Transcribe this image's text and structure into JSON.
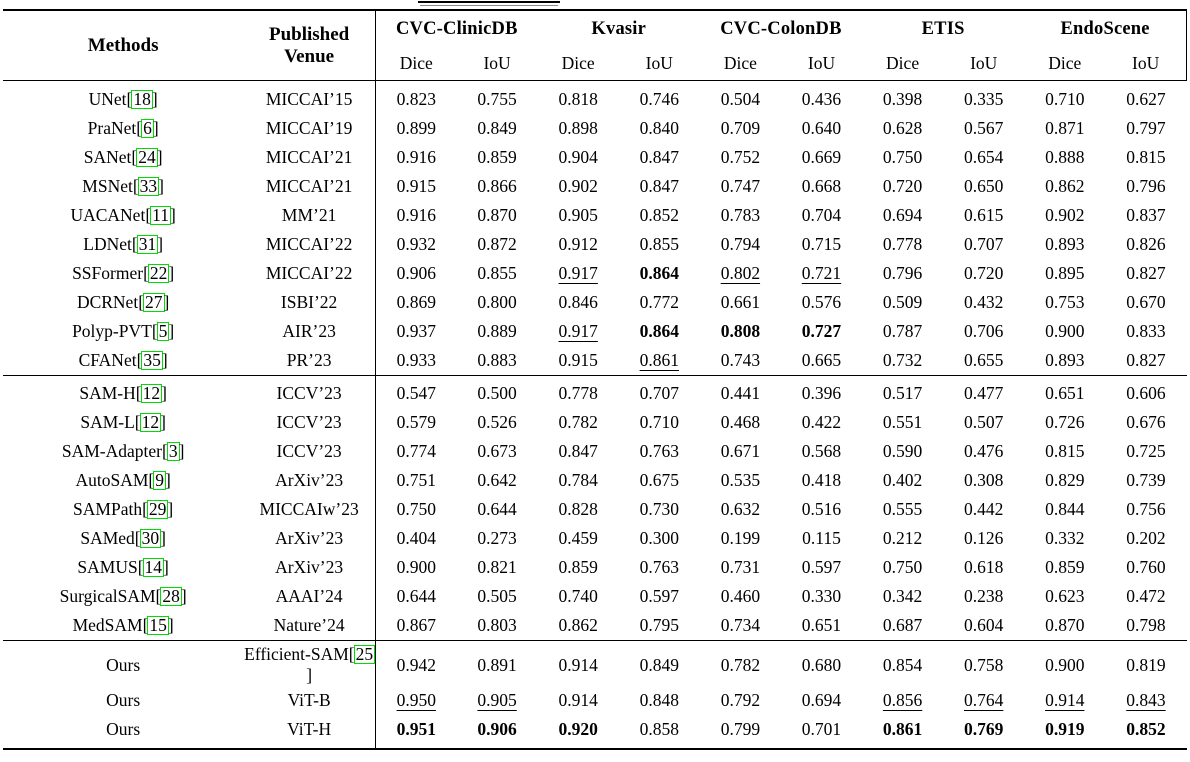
{
  "colors": {
    "citation_green": "#00dc00",
    "text": "#000000",
    "background": "#ffffff"
  },
  "table": {
    "header": {
      "methods": "Methods",
      "venue_line1": "Published",
      "venue_line2": "Venue",
      "datasets": [
        "CVC-ClinicDB",
        "Kvasir",
        "CVC-ColonDB",
        "ETIS",
        "EndoScene"
      ],
      "metrics": [
        "Dice",
        "IoU"
      ]
    },
    "groups": [
      {
        "rows": [
          {
            "method": "UNet",
            "method_cite": "18",
            "venue": "MICCAI’15",
            "venue_cite": null,
            "values": [
              {
                "v": "0.823"
              },
              {
                "v": "0.755"
              },
              {
                "v": "0.818"
              },
              {
                "v": "0.746"
              },
              {
                "v": "0.504"
              },
              {
                "v": "0.436"
              },
              {
                "v": "0.398"
              },
              {
                "v": "0.335"
              },
              {
                "v": "0.710"
              },
              {
                "v": "0.627"
              }
            ]
          },
          {
            "method": "PraNet",
            "method_cite": "6",
            "venue": "MICCAI’19",
            "venue_cite": null,
            "values": [
              {
                "v": "0.899"
              },
              {
                "v": "0.849"
              },
              {
                "v": "0.898"
              },
              {
                "v": "0.840"
              },
              {
                "v": "0.709"
              },
              {
                "v": "0.640"
              },
              {
                "v": "0.628"
              },
              {
                "v": "0.567"
              },
              {
                "v": "0.871"
              },
              {
                "v": "0.797"
              }
            ]
          },
          {
            "method": "SANet",
            "method_cite": "24",
            "venue": "MICCAI’21",
            "venue_cite": null,
            "values": [
              {
                "v": "0.916"
              },
              {
                "v": "0.859"
              },
              {
                "v": "0.904"
              },
              {
                "v": "0.847"
              },
              {
                "v": "0.752"
              },
              {
                "v": "0.669"
              },
              {
                "v": "0.750"
              },
              {
                "v": "0.654"
              },
              {
                "v": "0.888"
              },
              {
                "v": "0.815"
              }
            ]
          },
          {
            "method": "MSNet",
            "method_cite": "33",
            "venue": "MICCAI’21",
            "venue_cite": null,
            "values": [
              {
                "v": "0.915"
              },
              {
                "v": "0.866"
              },
              {
                "v": "0.902"
              },
              {
                "v": "0.847"
              },
              {
                "v": "0.747"
              },
              {
                "v": "0.668"
              },
              {
                "v": "0.720"
              },
              {
                "v": "0.650"
              },
              {
                "v": "0.862"
              },
              {
                "v": "0.796"
              }
            ]
          },
          {
            "method": "UACANet",
            "method_cite": "11",
            "venue": "MM’21",
            "venue_cite": null,
            "values": [
              {
                "v": "0.916"
              },
              {
                "v": "0.870"
              },
              {
                "v": "0.905"
              },
              {
                "v": "0.852"
              },
              {
                "v": "0.783"
              },
              {
                "v": "0.704"
              },
              {
                "v": "0.694"
              },
              {
                "v": "0.615"
              },
              {
                "v": "0.902"
              },
              {
                "v": "0.837"
              }
            ]
          },
          {
            "method": "LDNet",
            "method_cite": "31",
            "venue": "MICCAI’22",
            "venue_cite": null,
            "values": [
              {
                "v": "0.932"
              },
              {
                "v": "0.872"
              },
              {
                "v": "0.912"
              },
              {
                "v": "0.855"
              },
              {
                "v": "0.794"
              },
              {
                "v": "0.715"
              },
              {
                "v": "0.778"
              },
              {
                "v": "0.707"
              },
              {
                "v": "0.893"
              },
              {
                "v": "0.826"
              }
            ]
          },
          {
            "method": "SSFormer",
            "method_cite": "22",
            "venue": "MICCAI’22",
            "venue_cite": null,
            "values": [
              {
                "v": "0.906"
              },
              {
                "v": "0.855"
              },
              {
                "v": "0.917",
                "s": "u"
              },
              {
                "v": "0.864",
                "s": "b"
              },
              {
                "v": "0.802",
                "s": "u"
              },
              {
                "v": "0.721",
                "s": "u"
              },
              {
                "v": "0.796"
              },
              {
                "v": "0.720"
              },
              {
                "v": "0.895"
              },
              {
                "v": "0.827"
              }
            ]
          },
          {
            "method": "DCRNet",
            "method_cite": "27",
            "venue": "ISBI’22",
            "venue_cite": null,
            "values": [
              {
                "v": "0.869"
              },
              {
                "v": "0.800"
              },
              {
                "v": "0.846"
              },
              {
                "v": "0.772"
              },
              {
                "v": "0.661"
              },
              {
                "v": "0.576"
              },
              {
                "v": "0.509"
              },
              {
                "v": "0.432"
              },
              {
                "v": "0.753"
              },
              {
                "v": "0.670"
              }
            ]
          },
          {
            "method": "Polyp-PVT",
            "method_cite": "5",
            "venue": "AIR’23",
            "venue_cite": null,
            "values": [
              {
                "v": "0.937"
              },
              {
                "v": "0.889"
              },
              {
                "v": "0.917",
                "s": "u"
              },
              {
                "v": "0.864",
                "s": "b"
              },
              {
                "v": "0.808",
                "s": "b"
              },
              {
                "v": "0.727",
                "s": "b"
              },
              {
                "v": "0.787"
              },
              {
                "v": "0.706"
              },
              {
                "v": "0.900"
              },
              {
                "v": "0.833"
              }
            ]
          },
          {
            "method": "CFANet",
            "method_cite": "35",
            "venue": "PR’23",
            "venue_cite": null,
            "values": [
              {
                "v": "0.933"
              },
              {
                "v": "0.883"
              },
              {
                "v": "0.915"
              },
              {
                "v": "0.861",
                "s": "u"
              },
              {
                "v": "0.743"
              },
              {
                "v": "0.665"
              },
              {
                "v": "0.732"
              },
              {
                "v": "0.655"
              },
              {
                "v": "0.893"
              },
              {
                "v": "0.827"
              }
            ]
          }
        ]
      },
      {
        "rows": [
          {
            "method": "SAM-H",
            "method_cite": "12",
            "venue": "ICCV’23",
            "venue_cite": null,
            "values": [
              {
                "v": "0.547"
              },
              {
                "v": "0.500"
              },
              {
                "v": "0.778"
              },
              {
                "v": "0.707"
              },
              {
                "v": "0.441"
              },
              {
                "v": "0.396"
              },
              {
                "v": "0.517"
              },
              {
                "v": "0.477"
              },
              {
                "v": "0.651"
              },
              {
                "v": "0.606"
              }
            ]
          },
          {
            "method": "SAM-L",
            "method_cite": "12",
            "venue": "ICCV’23",
            "venue_cite": null,
            "values": [
              {
                "v": "0.579"
              },
              {
                "v": "0.526"
              },
              {
                "v": "0.782"
              },
              {
                "v": "0.710"
              },
              {
                "v": "0.468"
              },
              {
                "v": "0.422"
              },
              {
                "v": "0.551"
              },
              {
                "v": "0.507"
              },
              {
                "v": "0.726"
              },
              {
                "v": "0.676"
              }
            ]
          },
          {
            "method": "SAM-Adapter",
            "method_cite": "3",
            "venue": "ICCV’23",
            "venue_cite": null,
            "values": [
              {
                "v": "0.774"
              },
              {
                "v": "0.673"
              },
              {
                "v": "0.847"
              },
              {
                "v": "0.763"
              },
              {
                "v": "0.671"
              },
              {
                "v": "0.568"
              },
              {
                "v": "0.590"
              },
              {
                "v": "0.476"
              },
              {
                "v": "0.815"
              },
              {
                "v": "0.725"
              }
            ]
          },
          {
            "method": "AutoSAM",
            "method_cite": "9",
            "venue": "ArXiv’23",
            "venue_cite": null,
            "values": [
              {
                "v": "0.751"
              },
              {
                "v": "0.642"
              },
              {
                "v": "0.784"
              },
              {
                "v": "0.675"
              },
              {
                "v": "0.535"
              },
              {
                "v": "0.418"
              },
              {
                "v": "0.402"
              },
              {
                "v": "0.308"
              },
              {
                "v": "0.829"
              },
              {
                "v": "0.739"
              }
            ]
          },
          {
            "method": "SAMPath",
            "method_cite": "29",
            "venue": "MICCAIw’23",
            "venue_cite": null,
            "values": [
              {
                "v": "0.750"
              },
              {
                "v": "0.644"
              },
              {
                "v": "0.828"
              },
              {
                "v": "0.730"
              },
              {
                "v": "0.632"
              },
              {
                "v": "0.516"
              },
              {
                "v": "0.555"
              },
              {
                "v": "0.442"
              },
              {
                "v": "0.844"
              },
              {
                "v": "0.756"
              }
            ]
          },
          {
            "method": "SAMed",
            "method_cite": "30",
            "venue": "ArXiv’23",
            "venue_cite": null,
            "values": [
              {
                "v": "0.404"
              },
              {
                "v": "0.273"
              },
              {
                "v": "0.459"
              },
              {
                "v": "0.300"
              },
              {
                "v": "0.199"
              },
              {
                "v": "0.115"
              },
              {
                "v": "0.212"
              },
              {
                "v": "0.126"
              },
              {
                "v": "0.332"
              },
              {
                "v": "0.202"
              }
            ]
          },
          {
            "method": "SAMUS",
            "method_cite": "14",
            "venue": "ArXiv’23",
            "venue_cite": null,
            "values": [
              {
                "v": "0.900"
              },
              {
                "v": "0.821"
              },
              {
                "v": "0.859"
              },
              {
                "v": "0.763"
              },
              {
                "v": "0.731"
              },
              {
                "v": "0.597"
              },
              {
                "v": "0.750"
              },
              {
                "v": "0.618"
              },
              {
                "v": "0.859"
              },
              {
                "v": "0.760"
              }
            ]
          },
          {
            "method": "SurgicalSAM",
            "method_cite": "28",
            "venue": "AAAI’24",
            "venue_cite": null,
            "values": [
              {
                "v": "0.644"
              },
              {
                "v": "0.505"
              },
              {
                "v": "0.740"
              },
              {
                "v": "0.597"
              },
              {
                "v": "0.460"
              },
              {
                "v": "0.330"
              },
              {
                "v": "0.342"
              },
              {
                "v": "0.238"
              },
              {
                "v": "0.623"
              },
              {
                "v": "0.472"
              }
            ]
          },
          {
            "method": "MedSAM",
            "method_cite": "15",
            "venue": "Nature’24",
            "venue_cite": null,
            "values": [
              {
                "v": "0.867"
              },
              {
                "v": "0.803"
              },
              {
                "v": "0.862"
              },
              {
                "v": "0.795"
              },
              {
                "v": "0.734"
              },
              {
                "v": "0.651"
              },
              {
                "v": "0.687"
              },
              {
                "v": "0.604"
              },
              {
                "v": "0.870"
              },
              {
                "v": "0.798"
              }
            ]
          }
        ]
      },
      {
        "rows": [
          {
            "method": "Ours",
            "method_cite": null,
            "venue": "Efficient-SAM",
            "venue_cite": "25",
            "values": [
              {
                "v": "0.942"
              },
              {
                "v": "0.891"
              },
              {
                "v": "0.914"
              },
              {
                "v": "0.849"
              },
              {
                "v": "0.782"
              },
              {
                "v": "0.680"
              },
              {
                "v": "0.854"
              },
              {
                "v": "0.758"
              },
              {
                "v": "0.900"
              },
              {
                "v": "0.819"
              }
            ]
          },
          {
            "method": "Ours",
            "method_cite": null,
            "venue": "ViT-B",
            "venue_cite": null,
            "values": [
              {
                "v": "0.950",
                "s": "u"
              },
              {
                "v": "0.905",
                "s": "u"
              },
              {
                "v": "0.914"
              },
              {
                "v": "0.848"
              },
              {
                "v": "0.792"
              },
              {
                "v": "0.694"
              },
              {
                "v": "0.856",
                "s": "u"
              },
              {
                "v": "0.764",
                "s": "u"
              },
              {
                "v": "0.914",
                "s": "u"
              },
              {
                "v": "0.843",
                "s": "u"
              }
            ]
          },
          {
            "method": "Ours",
            "method_cite": null,
            "venue": "ViT-H",
            "venue_cite": null,
            "values": [
              {
                "v": "0.951",
                "s": "b"
              },
              {
                "v": "0.906",
                "s": "b"
              },
              {
                "v": "0.920",
                "s": "b"
              },
              {
                "v": "0.858"
              },
              {
                "v": "0.799"
              },
              {
                "v": "0.701"
              },
              {
                "v": "0.861",
                "s": "b"
              },
              {
                "v": "0.769",
                "s": "b"
              },
              {
                "v": "0.919",
                "s": "b"
              },
              {
                "v": "0.852",
                "s": "b"
              }
            ]
          }
        ]
      }
    ]
  }
}
